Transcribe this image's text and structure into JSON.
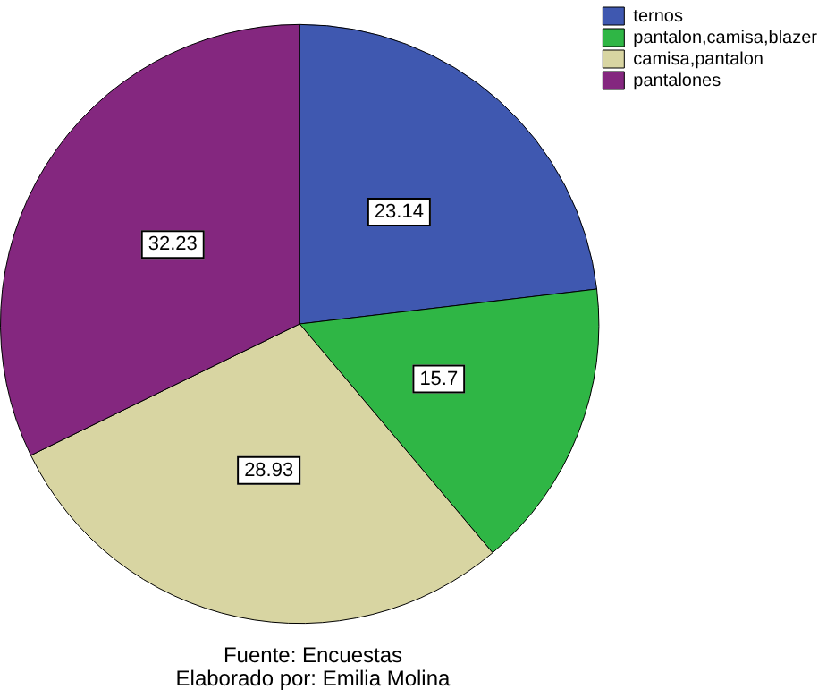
{
  "chart_data": {
    "type": "pie",
    "categories": [
      "ternos",
      "pantalon,camisa,blazer",
      "camisa,pantalon",
      "pantalones"
    ],
    "values": [
      23.14,
      15.7,
      28.93,
      32.23
    ],
    "colors": [
      "#3f58b0",
      "#2fb645",
      "#d8d5a2",
      "#84277f"
    ],
    "data_labels": true,
    "legend": "top right",
    "annotations": [
      "Fuente: Encuestas",
      "Elaborado por: Emilia Molina"
    ]
  }
}
